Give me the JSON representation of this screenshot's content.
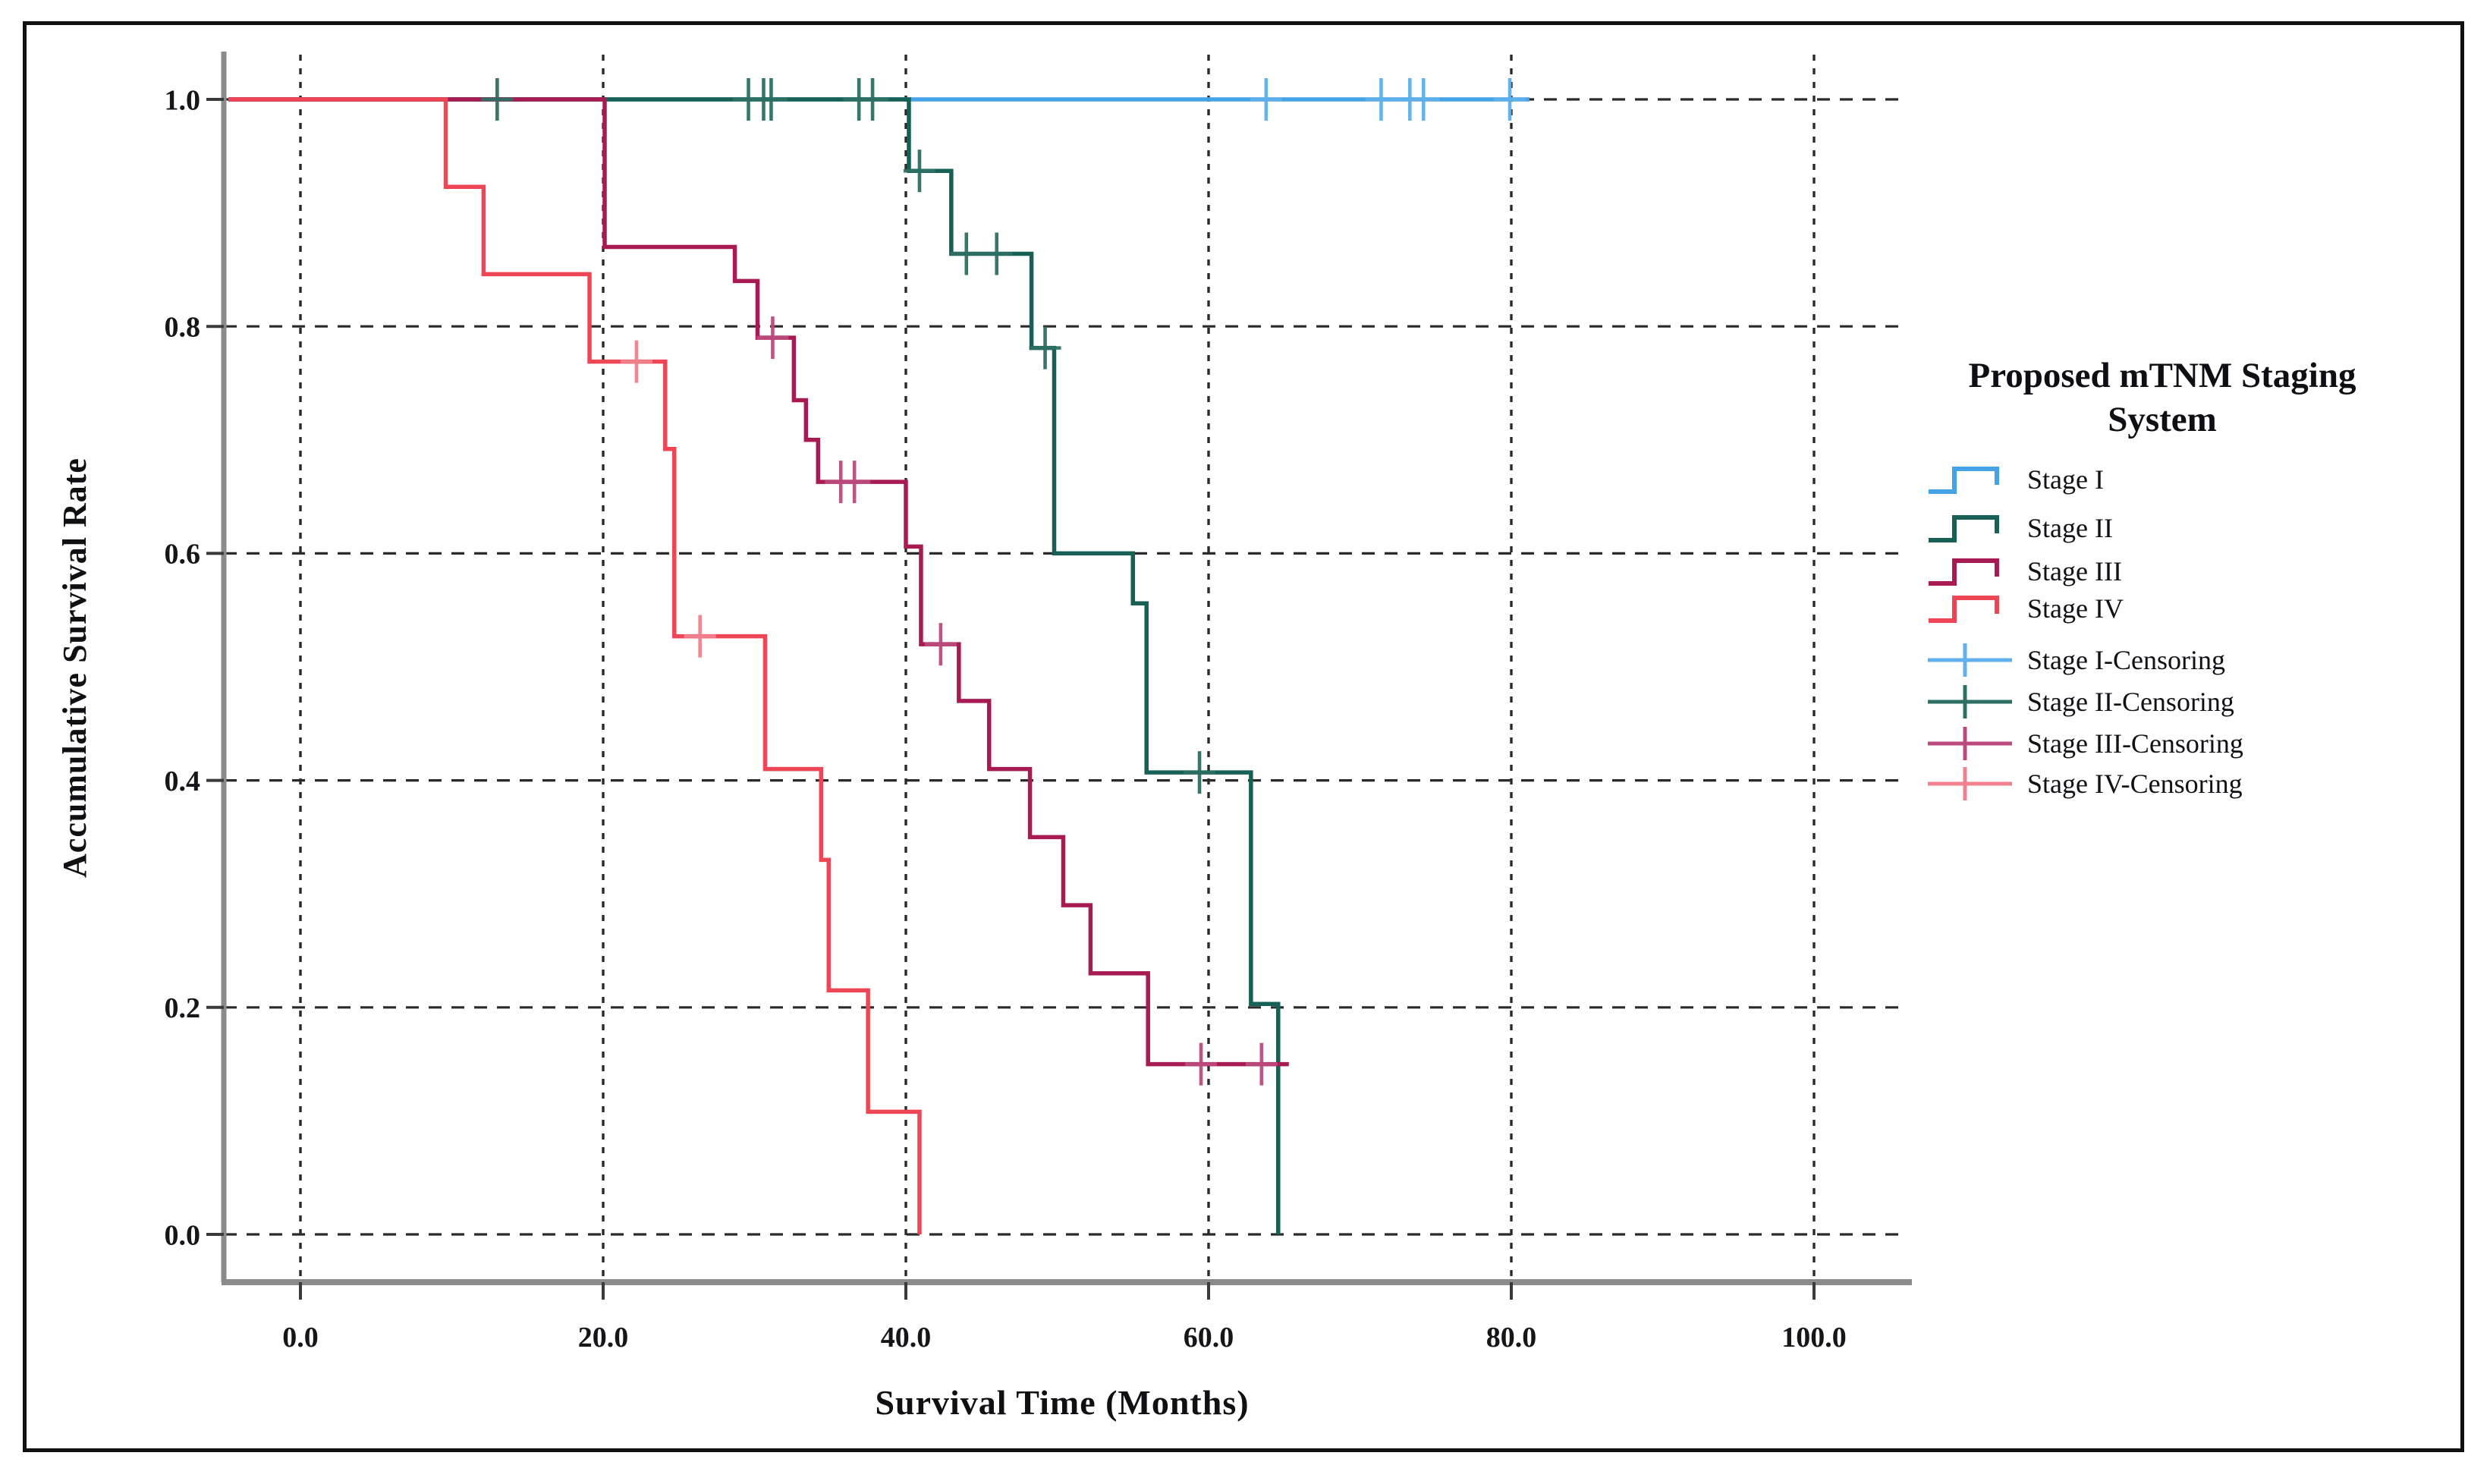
{
  "figure": {
    "kind": "kaplan-meier-survival-plot"
  },
  "chart_data": {
    "type": "line",
    "subtype": "kaplan-meier-step",
    "title": "Proposed mTNM Staging System",
    "legend_title_lines": [
      "Proposed mTNM Staging",
      "System"
    ],
    "xlabel": "Survival Time (Months)",
    "ylabel": "Accumulative Survival Rate",
    "xlim": [
      -5,
      106
    ],
    "ylim": [
      -0.05,
      1.06
    ],
    "grid": true,
    "legend_position": "right",
    "x_tick_values": [
      0,
      20,
      40,
      60,
      80,
      100
    ],
    "x_tick_labels": [
      "0.0",
      "20.0",
      "40.0",
      "60.0",
      "80.0",
      "100.0"
    ],
    "y_tick_values": [
      0,
      0.2,
      0.4,
      0.6,
      0.8,
      1.0
    ],
    "y_tick_labels": [
      "0.0",
      "0.2",
      "0.4",
      "0.6",
      "0.8",
      "1.0"
    ],
    "series": [
      {
        "name": "Stage I",
        "color": "#46a2e6",
        "censor_color": "#5fb0ec",
        "steps": [
          [
            0,
            1.0
          ],
          [
            81.2,
            1.0
          ]
        ],
        "censors": [
          [
            63.8,
            1.0
          ],
          [
            71.4,
            1.0
          ],
          [
            73.3,
            1.0
          ],
          [
            74.2,
            1.0
          ],
          [
            79.9,
            1.0
          ]
        ]
      },
      {
        "name": "Stage II",
        "color": "#176055",
        "censor_color": "#2f6f63",
        "steps": [
          [
            0,
            1.0
          ],
          [
            40.2,
            0.937
          ],
          [
            43.0,
            0.864
          ],
          [
            48.3,
            0.781
          ],
          [
            49.8,
            0.6
          ],
          [
            55.0,
            0.556
          ],
          [
            55.9,
            0.407
          ],
          [
            62.8,
            0.203
          ],
          [
            64.6,
            0.0
          ]
        ],
        "censors": [
          [
            13.0,
            1.0
          ],
          [
            29.6,
            1.0
          ],
          [
            30.6,
            1.0
          ],
          [
            31.1,
            1.0
          ],
          [
            36.9,
            1.0
          ],
          [
            37.8,
            1.0
          ],
          [
            40.9,
            0.937
          ],
          [
            44.0,
            0.864
          ],
          [
            46.0,
            0.864
          ],
          [
            49.2,
            0.781
          ],
          [
            59.4,
            0.407
          ]
        ]
      },
      {
        "name": "Stage III",
        "color": "#a81b52",
        "censor_color": "#bb4b7e",
        "steps": [
          [
            0,
            1.0
          ],
          [
            20.1,
            0.87
          ],
          [
            28.7,
            0.84
          ],
          [
            30.2,
            0.79
          ],
          [
            32.6,
            0.735
          ],
          [
            33.4,
            0.7
          ],
          [
            34.2,
            0.663
          ],
          [
            40.0,
            0.606
          ],
          [
            41.0,
            0.52
          ],
          [
            43.5,
            0.47
          ],
          [
            45.5,
            0.41
          ],
          [
            48.2,
            0.35
          ],
          [
            50.4,
            0.29
          ],
          [
            52.2,
            0.23
          ],
          [
            56.0,
            0.15
          ],
          [
            65.3,
            0.15
          ]
        ],
        "censors": [
          [
            31.2,
            0.79
          ],
          [
            35.7,
            0.663
          ],
          [
            36.6,
            0.663
          ],
          [
            42.3,
            0.52
          ],
          [
            59.5,
            0.15
          ],
          [
            63.5,
            0.15
          ]
        ]
      },
      {
        "name": "Stage IV",
        "color": "#ef4656",
        "censor_color": "#f2818e",
        "steps": [
          [
            0,
            1.0
          ],
          [
            9.6,
            0.923
          ],
          [
            12.1,
            0.846
          ],
          [
            19.1,
            0.769
          ],
          [
            24.1,
            0.692
          ],
          [
            24.7,
            0.527
          ],
          [
            30.7,
            0.41
          ],
          [
            34.4,
            0.33
          ],
          [
            34.9,
            0.215
          ],
          [
            37.5,
            0.108
          ],
          [
            40.9,
            0.0
          ]
        ],
        "censors": [
          [
            22.2,
            0.769
          ],
          [
            26.4,
            0.527
          ]
        ]
      }
    ],
    "censor_legend_labels": [
      "Stage I-Censoring",
      "Stage II-Censoring",
      "Stage III-Censoring",
      "Stage IV-Censoring"
    ]
  }
}
